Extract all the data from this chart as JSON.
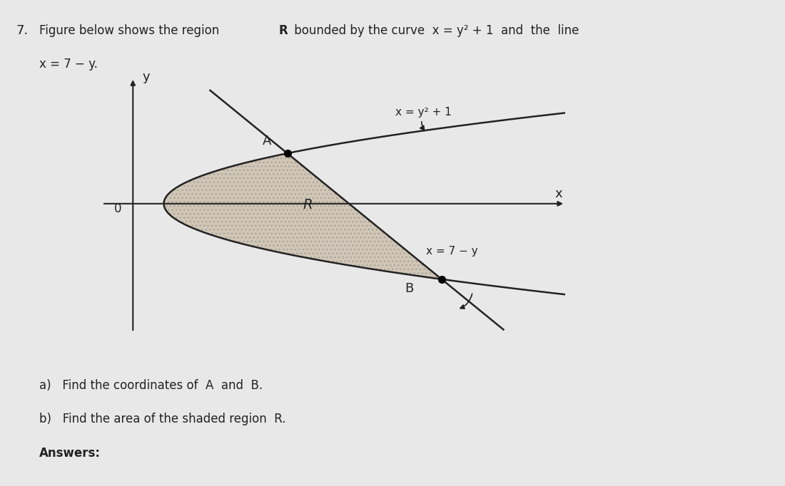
{
  "title_number": "7.",
  "title_text1": "Figure below shows the region  ",
  "title_R": "R",
  "title_text2": "  bounded by the curve  x = y² + 1  and  the  line",
  "title_text3": "x = 7 − y.",
  "y_axis_label": "y",
  "x_axis_label": "x",
  "origin_label": "0",
  "curve_label": "x = y² + 1",
  "line_label": "x = 7 − y",
  "region_label": "R",
  "point_A_label": "A",
  "point_B_label": "B",
  "point_A": [
    5,
    2
  ],
  "point_B": [
    10,
    -3
  ],
  "background_color": "#e8e8e8",
  "shade_color": "#c8b8a0",
  "shade_alpha": 0.7,
  "axes_color": "#222222",
  "curve_color": "#222222",
  "line_color": "#222222",
  "text_color": "#222222",
  "question_a": "a)   Find the coordinates of  A  and  B.",
  "question_b": "b)   Find the area of the shaded region  R.",
  "answers_label": "Answers:",
  "xlim": [
    -1,
    14
  ],
  "ylim": [
    -6,
    5
  ],
  "figsize": [
    11,
    6.82
  ],
  "dpi": 100
}
